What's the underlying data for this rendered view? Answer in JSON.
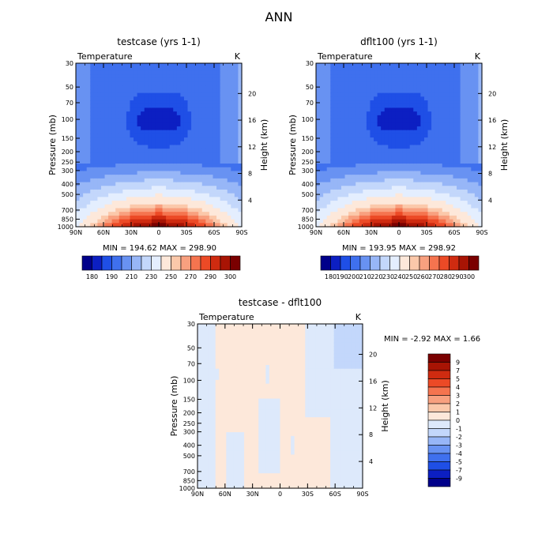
{
  "title": "ANN",
  "chart_data": [
    {
      "type": "heatmap",
      "title": "testcase (yrs 1-1)",
      "variable": "Temperature",
      "units": "K",
      "ylabel": "Pressure (mb)",
      "y2label": "Height (km)",
      "x_ticks": [
        "90N",
        "60N",
        "30N",
        "0",
        "30S",
        "60S",
        "90S"
      ],
      "y_ticks": [
        30,
        50,
        70,
        100,
        150,
        200,
        250,
        300,
        400,
        500,
        700,
        850,
        1000
      ],
      "height_ticks": [
        4,
        8,
        12,
        16,
        20
      ],
      "stats": "MIN = 194.62   MAX = 298.90",
      "colorbar_labels": [
        "180",
        "190",
        "210",
        "230",
        "250",
        "270",
        "290",
        "300"
      ],
      "colorbar_colors": [
        "#00008a",
        "#0c1fc2",
        "#1f4fe6",
        "#3f70ee",
        "#6892f2",
        "#97b6f7",
        "#c3d7fb",
        "#e4eefe",
        "#fde8da",
        "#fbc8aa",
        "#f8a07f",
        "#f5744f",
        "#ec4a26",
        "#cf2b10",
        "#a81404",
        "#7a0000"
      ],
      "range": [
        194.62,
        298.9
      ]
    },
    {
      "type": "heatmap",
      "title": "dflt100 (yrs 1-1)",
      "variable": "Temperature",
      "units": "K",
      "ylabel": "Pressure (mb)",
      "y2label": "Height (km)",
      "x_ticks": [
        "90N",
        "60N",
        "30N",
        "0",
        "30S",
        "60S",
        "90S"
      ],
      "y_ticks": [
        30,
        50,
        70,
        100,
        150,
        200,
        250,
        300,
        400,
        500,
        700,
        850,
        1000
      ],
      "height_ticks": [
        4,
        8,
        12,
        16,
        20
      ],
      "stats": "MIN = 193.95   MAX = 298.92",
      "colorbar_labels": [
        "180",
        "190",
        "200",
        "210",
        "220",
        "230",
        "240",
        "250",
        "260",
        "270",
        "280",
        "290",
        "300"
      ],
      "colorbar_colors": [
        "#00008a",
        "#0c1fc2",
        "#1f4fe6",
        "#3f70ee",
        "#6892f2",
        "#97b6f7",
        "#c3d7fb",
        "#e4eefe",
        "#fde8da",
        "#fbc8aa",
        "#f8a07f",
        "#f5744f",
        "#ec4a26",
        "#cf2b10",
        "#a81404",
        "#7a0000"
      ],
      "range": [
        193.95,
        298.92
      ]
    },
    {
      "type": "heatmap",
      "title": "testcase - dflt100",
      "variable": "Temperature",
      "units": "K",
      "ylabel": "Pressure (mb)",
      "y2label": "Height (km)",
      "x_ticks": [
        "90N",
        "60N",
        "30N",
        "0",
        "30S",
        "60S",
        "90S"
      ],
      "y_ticks": [
        30,
        50,
        70,
        100,
        150,
        200,
        250,
        300,
        400,
        500,
        700,
        850,
        1000
      ],
      "height_ticks": [
        4,
        8,
        12,
        16,
        20
      ],
      "stats": "MIN =   -2.92   MAX =    1.66",
      "colorbar_labels": [
        "9",
        "7",
        "5",
        "4",
        "3",
        "2",
        "1",
        "0",
        "-1",
        "-2",
        "-3",
        "-4",
        "-5",
        "-7",
        "-9"
      ],
      "colorbar_colors": [
        "#7a0000",
        "#a81404",
        "#cf2b10",
        "#ec4a26",
        "#f5744f",
        "#f8a07f",
        "#fbc8aa",
        "#fde8da",
        "#dde9fb",
        "#c3d7fb",
        "#97b6f7",
        "#6892f2",
        "#3f70ee",
        "#1f4fe6",
        "#0c1fc2",
        "#00008a"
      ],
      "range": [
        -2.92,
        1.66
      ]
    }
  ]
}
